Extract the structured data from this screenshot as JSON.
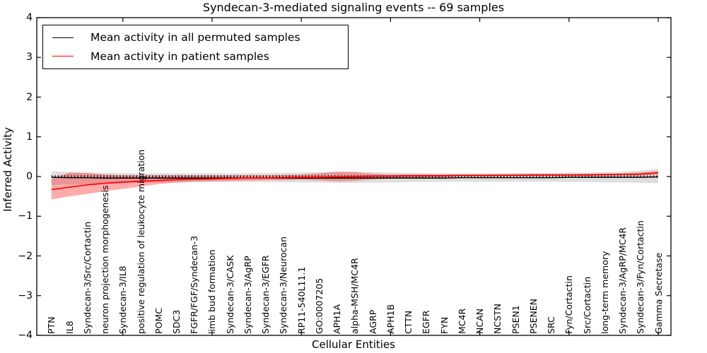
{
  "figure": {
    "background": "#ffffff"
  },
  "chart_data": {
    "type": "line",
    "title": "Syndecan-3-mediated signaling events -- 69 samples",
    "xlabel": "Cellular Entities",
    "ylabel": "Inferred Activity",
    "ylim": [
      -4,
      4
    ],
    "yticks": [
      4,
      3,
      2,
      1,
      0,
      -1,
      -2,
      -3,
      -4
    ],
    "xtick_indices": [
      4,
      9,
      14,
      19,
      24,
      29,
      34
    ],
    "grid": false,
    "legend_position": "upper-left",
    "categories": [
      "PTN",
      "IL8",
      "Syndecan-3/Src/Cortactin",
      "neuron projection morphogenesis",
      "Syndecan-3/IL8",
      "positive regulation of leukocyte migration",
      "POMC",
      "SDC3",
      "FGFR/FGF/Syndecan-3",
      "limb bud formation",
      "Syndecan-3/CASK",
      "Syndecan-3/AgRP",
      "Syndecan-3/EGFR",
      "Syndecan-3/Neurocan",
      "RP11-540L11.1",
      "GO:0007205",
      "APH1A",
      "alpha-MSH/MC4R",
      "AGRP",
      "APH1B",
      "CTTN",
      "EGFR",
      "FYN",
      "MC4R",
      "NCAN",
      "NCSTN",
      "PSEN1",
      "PSENEN",
      "SRC",
      "Fyn/Cortactin",
      "Src/Cortactin",
      "long-term memory",
      "Syndecan-3/AgRP/MC4R",
      "Syndecan-3/Fyn/Cortactin",
      "Gamma Secretase"
    ],
    "series": [
      {
        "name": "Mean activity in all permuted samples",
        "color": "#000000",
        "line_width": 1.4,
        "band_color": "rgba(0,0,0,0.13)",
        "values": [
          -0.02,
          -0.03,
          -0.03,
          -0.04,
          -0.04,
          -0.04,
          -0.04,
          -0.04,
          -0.04,
          -0.04,
          -0.04,
          -0.04,
          -0.04,
          -0.04,
          -0.04,
          -0.04,
          -0.04,
          -0.04,
          -0.04,
          -0.04,
          -0.04,
          -0.04,
          -0.04,
          -0.03,
          -0.03,
          -0.03,
          -0.03,
          -0.03,
          -0.03,
          -0.02,
          -0.02,
          -0.02,
          -0.02,
          -0.02,
          -0.01
        ],
        "band_upper": [
          0.13,
          0.11,
          0.1,
          0.09,
          0.09,
          0.08,
          0.08,
          0.08,
          0.08,
          0.08,
          0.08,
          0.08,
          0.09,
          0.09,
          0.1,
          0.11,
          0.12,
          0.12,
          0.11,
          0.1,
          0.09,
          0.09,
          0.08,
          0.08,
          0.08,
          0.08,
          0.09,
          0.09,
          0.09,
          0.1,
          0.1,
          0.11,
          0.12,
          0.15,
          0.19
        ],
        "band_lower": [
          -0.21,
          -0.2,
          -0.19,
          -0.18,
          -0.17,
          -0.16,
          -0.15,
          -0.15,
          -0.14,
          -0.14,
          -0.14,
          -0.14,
          -0.14,
          -0.14,
          -0.15,
          -0.15,
          -0.16,
          -0.16,
          -0.15,
          -0.15,
          -0.14,
          -0.14,
          -0.13,
          -0.13,
          -0.13,
          -0.13,
          -0.13,
          -0.13,
          -0.13,
          -0.14,
          -0.14,
          -0.15,
          -0.15,
          -0.16,
          -0.17
        ]
      },
      {
        "name": "Mean activity in patient samples",
        "color": "#ff0000",
        "line_width": 1.7,
        "band_color": "rgba(255,0,0,0.33)",
        "values": [
          -0.33,
          -0.27,
          -0.21,
          -0.17,
          -0.14,
          -0.12,
          -0.1,
          -0.08,
          -0.07,
          -0.06,
          -0.05,
          -0.04,
          -0.04,
          -0.03,
          -0.02,
          -0.02,
          -0.01,
          0.0,
          0.01,
          0.01,
          0.02,
          0.02,
          0.02,
          0.03,
          0.03,
          0.03,
          0.03,
          0.04,
          0.04,
          0.04,
          0.04,
          0.05,
          0.05,
          0.06,
          0.09
        ],
        "band_upper": [
          -0.06,
          0.1,
          0.09,
          0.05,
          0.03,
          0.03,
          0.03,
          0.03,
          0.03,
          0.03,
          0.03,
          0.03,
          0.03,
          0.04,
          0.05,
          0.08,
          0.12,
          0.11,
          0.07,
          0.05,
          0.05,
          0.05,
          0.05,
          0.05,
          0.05,
          0.06,
          0.06,
          0.06,
          0.06,
          0.06,
          0.07,
          0.07,
          0.08,
          0.1,
          0.14
        ],
        "band_lower": [
          -0.58,
          -0.5,
          -0.44,
          -0.37,
          -0.31,
          -0.25,
          -0.19,
          -0.15,
          -0.13,
          -0.12,
          -0.11,
          -0.1,
          -0.09,
          -0.09,
          -0.08,
          -0.1,
          -0.12,
          -0.11,
          -0.07,
          -0.05,
          -0.03,
          -0.02,
          -0.01,
          0.0,
          0.0,
          0.0,
          0.01,
          0.01,
          0.01,
          0.02,
          0.02,
          0.02,
          0.03,
          0.03,
          0.05
        ]
      }
    ],
    "zero_line": {
      "y": 0,
      "color": "#000000",
      "style": "dotted"
    }
  }
}
